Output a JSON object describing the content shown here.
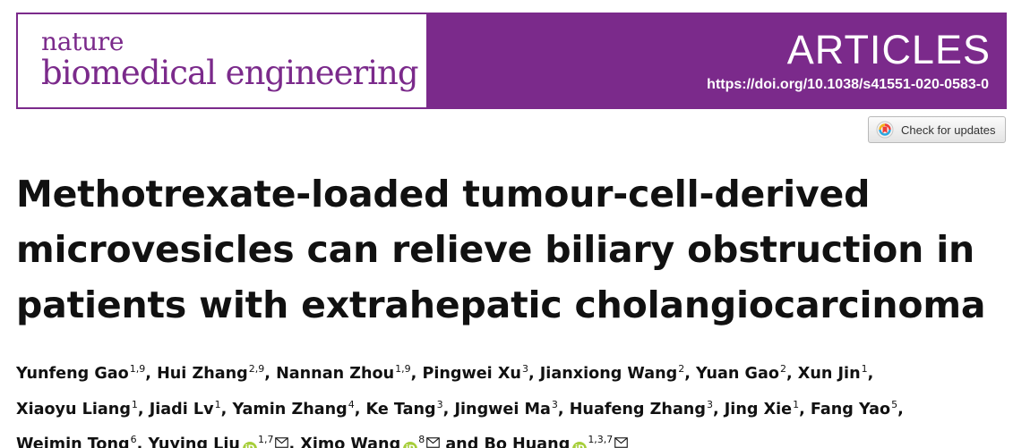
{
  "journal": {
    "line1": "nature",
    "line2": "biomedical engineering"
  },
  "banner": {
    "type": "ARTICLES",
    "doi": "https://doi.org/10.1038/s41551-020-0583-0"
  },
  "check_updates": {
    "label": "Check for updates",
    "icon": "check-for-updates-icon"
  },
  "title_lines": [
    "Methotrexate-loaded tumour-cell-derived",
    "microvesicles can relieve biliary obstruction in",
    "patients with extrahepatic cholangiocarcinoma"
  ],
  "authors": [
    {
      "name": "Yunfeng Gao",
      "sup": "1,9",
      "sep": ", "
    },
    {
      "name": "Hui Zhang",
      "sup": "2,9",
      "sep": ", "
    },
    {
      "name": "Nannan Zhou",
      "sup": "1,9",
      "sep": ", "
    },
    {
      "name": "Pingwei Xu",
      "sup": "3",
      "sep": ", "
    },
    {
      "name": "Jianxiong Wang",
      "sup": "2",
      "sep": ", "
    },
    {
      "name": "Yuan Gao",
      "sup": "2",
      "sep": ", "
    },
    {
      "name": "Xun Jin",
      "sup": "1",
      "sep": ","
    },
    {
      "name": "Xiaoyu Liang",
      "sup": "1",
      "sep": ", "
    },
    {
      "name": "Jiadi Lv",
      "sup": "1",
      "sep": ", "
    },
    {
      "name": "Yamin Zhang",
      "sup": "4",
      "sep": ", "
    },
    {
      "name": "Ke Tang",
      "sup": "3",
      "sep": ", "
    },
    {
      "name": "Jingwei Ma",
      "sup": "3",
      "sep": ", "
    },
    {
      "name": "Huafeng Zhang",
      "sup": "3",
      "sep": ", "
    },
    {
      "name": "Jing Xie",
      "sup": "1",
      "sep": ", "
    },
    {
      "name": "Fang Yao",
      "sup": "5",
      "sep": ","
    },
    {
      "name": "Weimin Tong",
      "sup": "6",
      "sep": ", "
    },
    {
      "name": "Yuying Liu",
      "sup": "1,7",
      "sep": ", "
    },
    {
      "name": "Ximo Wang",
      "sup": "8",
      "sep": " and "
    },
    {
      "name": "Bo Huang",
      "sup": "1,3,7",
      "sep": ""
    }
  ],
  "orcid_label": "iD",
  "colors": {
    "brand": "#7b2a8b",
    "orcid": "#a6ce39"
  }
}
